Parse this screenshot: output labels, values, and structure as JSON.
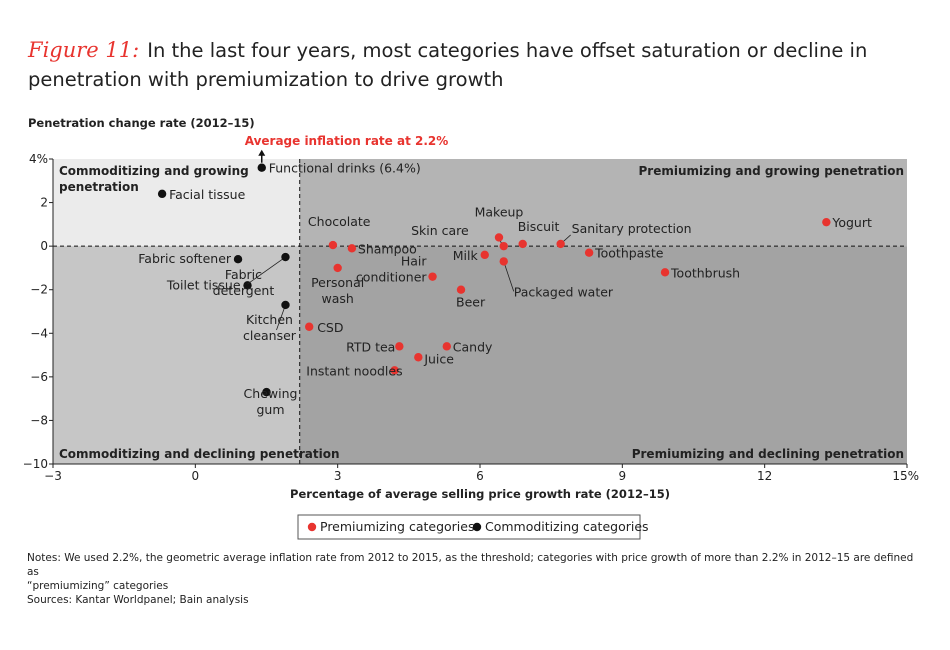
{
  "title": {
    "figure_label": "Figure 11:",
    "text": "In the last four years, most categories have offset saturation or decline in penetration with premiumization to drive growth"
  },
  "chart_data": {
    "type": "scatter",
    "ylabel": "Penetration change rate (2012–15)",
    "xlabel": "Percentage of average selling price growth rate (2012–15)",
    "xlim": [
      -3,
      15
    ],
    "ylim": [
      -10,
      4
    ],
    "x_ticks": [
      {
        "v": -3,
        "label": "−3"
      },
      {
        "v": 0,
        "label": "0"
      },
      {
        "v": 3,
        "label": "3"
      },
      {
        "v": 6,
        "label": "6"
      },
      {
        "v": 9,
        "label": "9"
      },
      {
        "v": 12,
        "label": "12"
      },
      {
        "v": 15,
        "label": "15%"
      }
    ],
    "y_ticks": [
      {
        "v": 4,
        "label": "4%"
      },
      {
        "v": 2,
        "label": "2"
      },
      {
        "v": 0,
        "label": "0"
      },
      {
        "v": -2,
        "label": "−2"
      },
      {
        "v": -4,
        "label": "−4"
      },
      {
        "v": -6,
        "label": "−6"
      },
      {
        "v": -8,
        "label": "−8"
      },
      {
        "v": -10,
        "label": "−10"
      }
    ],
    "threshold_x": 2.2,
    "threshold_label": "Average inflation rate at 2.2%",
    "quadrants": {
      "top_left": "Commoditizing and growing penetration",
      "top_right": "Premiumizing and growing penetration",
      "bottom_left": "Commoditizing and declining penetration",
      "bottom_right": "Premiumizing and declining penetration"
    },
    "colors": {
      "premiumizing": "#e8342f",
      "commoditizing": "#111111",
      "quad_left_top": "#ebebeb",
      "quad_left_bottom": "#c6c6c6",
      "quad_right_top": "#b4b4b4",
      "quad_right_bottom": "#a3a3a3",
      "accent": "#e8342f"
    },
    "legend": [
      {
        "label": "Premiumizing categories",
        "color": "#e8342f"
      },
      {
        "label": "Commoditizing categories",
        "color": "#111111"
      }
    ],
    "series": [
      {
        "name": "Premiumizing categories",
        "points": [
          {
            "label": "Chocolate",
            "x": 2.9,
            "y": 0.05
          },
          {
            "label": "Shampoo",
            "x": 3.3,
            "y": -0.1
          },
          {
            "label": "Personal wash",
            "x": 3.0,
            "y": -1.0
          },
          {
            "label": "CSD",
            "x": 2.4,
            "y": -3.7
          },
          {
            "label": "RTD tea",
            "x": 4.3,
            "y": -4.6
          },
          {
            "label": "Instant noodles",
            "x": 4.2,
            "y": -5.7
          },
          {
            "label": "Juice",
            "x": 4.7,
            "y": -5.1
          },
          {
            "label": "Candy",
            "x": 5.3,
            "y": -4.6
          },
          {
            "label": "Hair conditioner",
            "x": 5.0,
            "y": -1.4
          },
          {
            "label": "Beer",
            "x": 5.6,
            "y": -2.0
          },
          {
            "label": "Milk",
            "x": 6.1,
            "y": -0.4
          },
          {
            "label": "Skin care",
            "x": 6.5,
            "y": 0.0
          },
          {
            "label": "Makeup",
            "x": 6.4,
            "y": 0.4
          },
          {
            "label": "Packaged water",
            "x": 6.5,
            "y": -0.7
          },
          {
            "label": "Biscuit",
            "x": 6.9,
            "y": 0.1
          },
          {
            "label": "Sanitary protection",
            "x": 7.7,
            "y": 0.1
          },
          {
            "label": "Toothpaste",
            "x": 8.3,
            "y": -0.3
          },
          {
            "label": "Toothbrush",
            "x": 9.9,
            "y": -1.2
          },
          {
            "label": "Yogurt",
            "x": 13.3,
            "y": 1.1
          }
        ]
      },
      {
        "name": "Commoditizing categories",
        "points": [
          {
            "label": "Functional drinks (6.4%)",
            "x": 1.4,
            "y": 3.6
          },
          {
            "label": "Facial tissue",
            "x": -0.7,
            "y": 2.4
          },
          {
            "label": "Fabric softener",
            "x": 0.9,
            "y": -0.6
          },
          {
            "label": "Toilet tissue",
            "x": 1.1,
            "y": -1.8
          },
          {
            "label": "Fabric detergent",
            "x": 1.9,
            "y": -0.5
          },
          {
            "label": "Kitchen cleanser",
            "x": 1.9,
            "y": -2.7
          },
          {
            "label": "Chewing gum",
            "x": 1.5,
            "y": -6.7
          }
        ]
      }
    ]
  },
  "notes": {
    "line1": "Notes: We used 2.2%, the geometric average inflation rate from 2012 to 2015, as the threshold; categories with price growth of more than 2.2% in 2012–15 are defined as",
    "line2": "“premiumizing” categories",
    "sources": "Sources: Kantar Worldpanel; Bain analysis"
  }
}
